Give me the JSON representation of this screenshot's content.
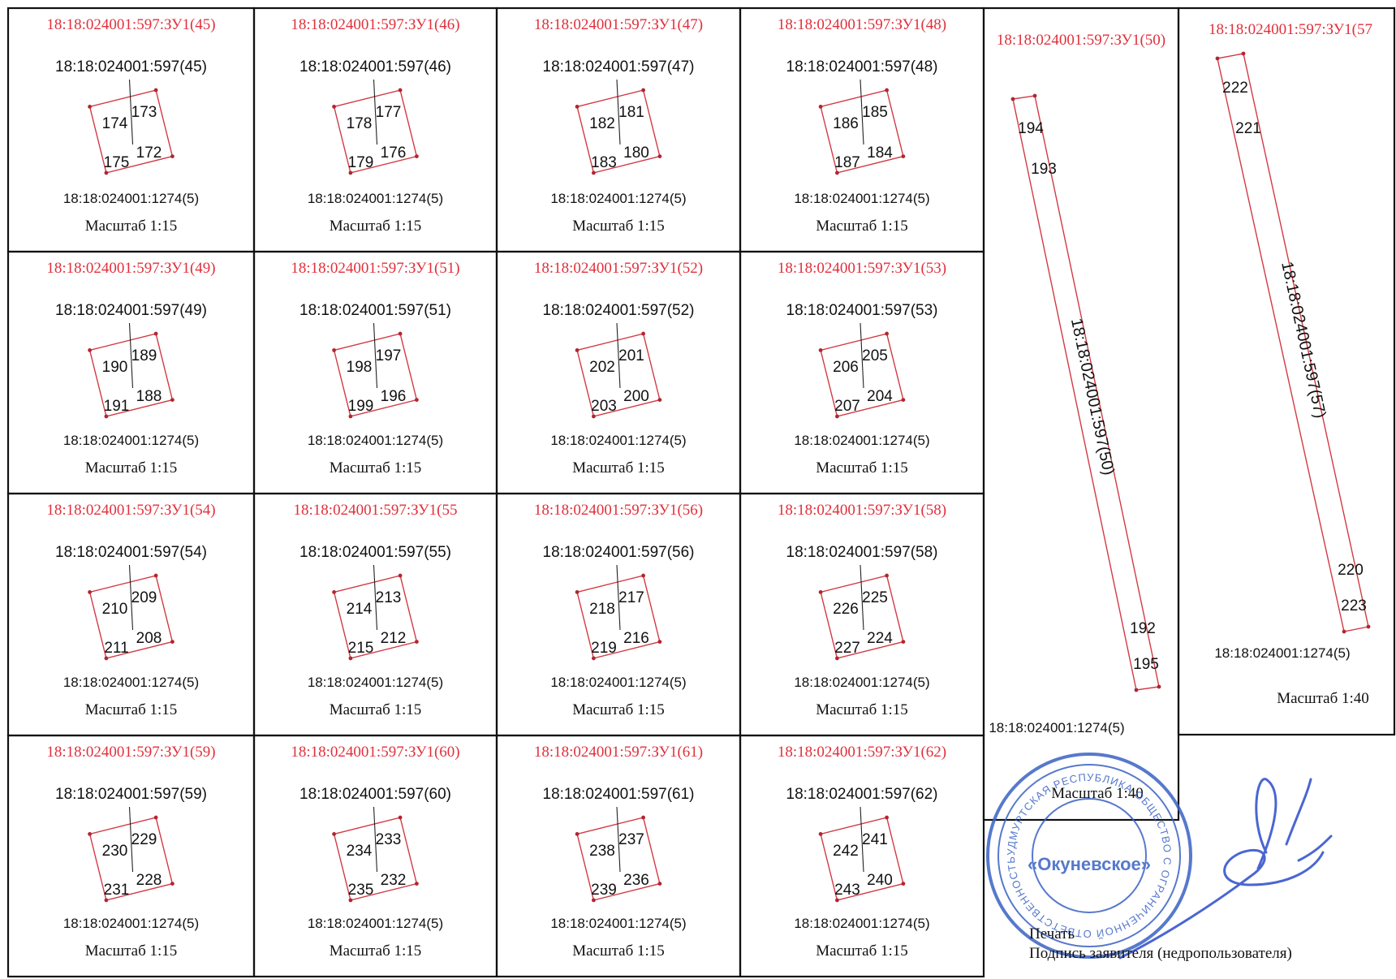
{
  "cells": [
    {
      "title": "18:18:024001:597:ЗУ1(45)",
      "parcel": "18:18:024001:597(45)",
      "base": "18:18:024001:1274(5)",
      "scale": "Масштаб 1:15",
      "points": [
        "174",
        "173",
        "175",
        "172"
      ]
    },
    {
      "title": "18:18:024001:597:ЗУ1(46)",
      "parcel": "18:18:024001:597(46)",
      "base": "18:18:024001:1274(5)",
      "scale": "Масштаб 1:15",
      "points": [
        "178",
        "177",
        "179",
        "176"
      ]
    },
    {
      "title": "18:18:024001:597:ЗУ1(47)",
      "parcel": "18:18:024001:597(47)",
      "base": "18:18:024001:1274(5)",
      "scale": "Масштаб 1:15",
      "points": [
        "182",
        "181",
        "183",
        "180"
      ]
    },
    {
      "title": "18:18:024001:597:ЗУ1(48)",
      "parcel": "18:18:024001:597(48)",
      "base": "18:18:024001:1274(5)",
      "scale": "Масштаб 1:15",
      "points": [
        "186",
        "185",
        "187",
        "184"
      ]
    },
    {
      "title": "18:18:024001:597:ЗУ1(49)",
      "parcel": "18:18:024001:597(49)",
      "base": "18:18:024001:1274(5)",
      "scale": "Масштаб 1:15",
      "points": [
        "190",
        "189",
        "191",
        "188"
      ]
    },
    {
      "title": "18:18:024001:597:ЗУ1(51)",
      "parcel": "18:18:024001:597(51)",
      "base": "18:18:024001:1274(5)",
      "scale": "Масштаб 1:15",
      "points": [
        "198",
        "197",
        "199",
        "196"
      ]
    },
    {
      "title": "18:18:024001:597:ЗУ1(52)",
      "parcel": "18:18:024001:597(52)",
      "base": "18:18:024001:1274(5)",
      "scale": "Масштаб 1:15",
      "points": [
        "202",
        "201",
        "203",
        "200"
      ]
    },
    {
      "title": "18:18:024001:597:ЗУ1(53)",
      "parcel": "18:18:024001:597(53)",
      "base": "18:18:024001:1274(5)",
      "scale": "Масштаб 1:15",
      "points": [
        "206",
        "205",
        "207",
        "204"
      ]
    },
    {
      "title": "18:18:024001:597:ЗУ1(54)",
      "parcel": "18:18:024001:597(54)",
      "base": "18:18:024001:1274(5)",
      "scale": "Масштаб 1:15",
      "points": [
        "210",
        "209",
        "211",
        "208"
      ]
    },
    {
      "title": "18:18:024001:597:ЗУ1(55",
      "parcel": "18:18:024001:597(55)",
      "base": "18:18:024001:1274(5)",
      "scale": "Масштаб 1:15",
      "points": [
        "214",
        "213",
        "215",
        "212"
      ]
    },
    {
      "title": "18:18:024001:597:ЗУ1(56)",
      "parcel": "18:18:024001:597(56)",
      "base": "18:18:024001:1274(5)",
      "scale": "Масштаб 1:15",
      "points": [
        "218",
        "217",
        "219",
        "216"
      ]
    },
    {
      "title": "18:18:024001:597:ЗУ1(58)",
      "parcel": "18:18:024001:597(58)",
      "base": "18:18:024001:1274(5)",
      "scale": "Масштаб 1:15",
      "points": [
        "226",
        "225",
        "227",
        "224"
      ]
    },
    {
      "title": "18:18:024001:597:ЗУ1(59)",
      "parcel": "18:18:024001:597(59)",
      "base": "18:18:024001:1274(5)",
      "scale": "Масштаб 1:15",
      "points": [
        "230",
        "229",
        "231",
        "228"
      ]
    },
    {
      "title": "18:18:024001:597:ЗУ1(60)",
      "parcel": "18:18:024001:597(60)",
      "base": "18:18:024001:1274(5)",
      "scale": "Масштаб 1:15",
      "points": [
        "234",
        "233",
        "235",
        "232"
      ]
    },
    {
      "title": "18:18:024001:597:ЗУ1(61)",
      "parcel": "18:18:024001:597(61)",
      "base": "18:18:024001:1274(5)",
      "scale": "Масштаб 1:15",
      "points": [
        "238",
        "237",
        "239",
        "236"
      ]
    },
    {
      "title": "18:18:024001:597:ЗУ1(62)",
      "parcel": "18:18:024001:597(62)",
      "base": "18:18:024001:1274(5)",
      "scale": "Масштаб 1:15",
      "points": [
        "242",
        "241",
        "243",
        "240"
      ]
    }
  ],
  "tall": [
    {
      "title": "18:18:024001:597:ЗУ1(50)",
      "parcel": "18:18:024001:597(50)",
      "base": "18:18:024001:1274(5)",
      "scale": "Масштаб 1:40",
      "points": [
        "194",
        "193",
        "192",
        "195"
      ]
    },
    {
      "title": "18:18:024001:597:ЗУ1(57",
      "parcel": "18:18:024001:597(57)",
      "base": "18:18:024001:1274(5)",
      "scale": "Масштаб 1:40",
      "points": [
        "222",
        "221",
        "220",
        "223"
      ]
    }
  ],
  "stamp": {
    "center": "«Окуневское»",
    "label": "Печать",
    "ring": "УДМУРТСКАЯ РЕСПУБЛИКА ОБЩЕСТВО С ОГРАНИЧЕННОЙ ОТВЕТСТВЕННОСТЬЮ"
  },
  "signature_label": "Подпись заявителя (недропользователя)",
  "colors": {
    "title": "#e0303c",
    "plot": "#d23a44",
    "ink": "#111111",
    "stamp": "#3a62c4"
  }
}
